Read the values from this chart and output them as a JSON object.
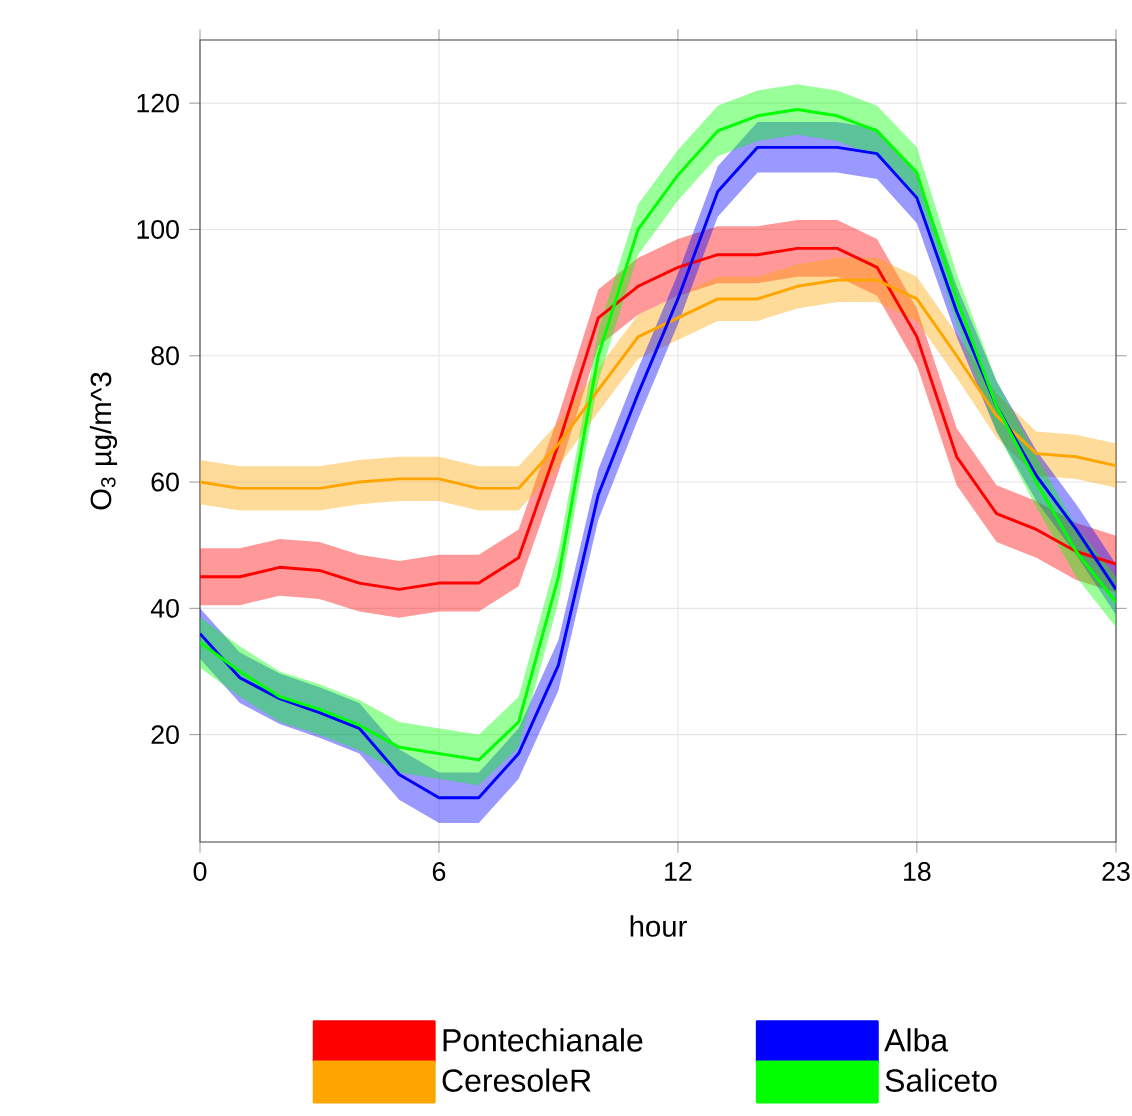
{
  "chart_data": {
    "type": "line",
    "xlabel": "hour",
    "ylabel": "O$_{3}$ µg/m^3",
    "x": [
      0,
      1,
      2,
      3,
      4,
      5,
      6,
      7,
      8,
      9,
      10,
      11,
      12,
      13,
      14,
      15,
      16,
      17,
      18,
      19,
      20,
      21,
      22,
      23
    ],
    "xlim": [
      0,
      23
    ],
    "xticks": [
      0,
      6,
      12,
      18,
      23
    ],
    "ylim": [
      3,
      130
    ],
    "yticks": [
      20,
      40,
      60,
      80,
      100,
      120
    ],
    "grid": true,
    "legend": "bottom",
    "marker": "none",
    "line_style": "solid",
    "series": [
      {
        "name": "Pontechianale",
        "color": "#ff0000",
        "values": [
          45,
          45,
          46.5,
          46,
          44,
          43,
          44,
          44,
          48,
          66,
          86,
          91,
          94,
          96,
          96,
          97,
          97,
          94,
          83,
          64,
          55,
          52.5,
          49,
          47
        ],
        "lower": [
          40.5,
          40.5,
          42,
          41.5,
          39.5,
          38.5,
          39.5,
          39.5,
          43.5,
          61.5,
          81.5,
          86.5,
          89.5,
          91.5,
          91.5,
          92.5,
          92.5,
          89.5,
          78.5,
          59.5,
          50.5,
          48,
          44.5,
          42.5
        ],
        "upper": [
          49.5,
          49.5,
          51,
          50.5,
          48.5,
          47.5,
          48.5,
          48.5,
          52.5,
          70.5,
          90.5,
          95.5,
          98.5,
          100.5,
          100.5,
          101.5,
          101.5,
          98.5,
          87.5,
          68.5,
          59.5,
          57,
          53.5,
          51.5
        ]
      },
      {
        "name": "CeresoleR",
        "color": "#ffa500",
        "values": [
          60,
          59,
          59,
          59,
          60,
          60.5,
          60.5,
          59,
          59,
          66,
          74.6,
          83,
          86,
          89,
          89,
          91,
          92,
          92,
          89,
          80,
          70.5,
          64.5,
          64,
          62.6
        ],
        "lower": [
          56.5,
          55.5,
          55.5,
          55.5,
          56.5,
          57,
          57,
          55.5,
          55.5,
          62.5,
          71.1,
          79.5,
          82.5,
          85.5,
          85.5,
          87.5,
          88.5,
          88.5,
          85.5,
          76.5,
          67,
          61,
          60.5,
          59.1
        ],
        "upper": [
          63.5,
          62.5,
          62.5,
          62.5,
          63.5,
          64,
          64,
          62.5,
          62.5,
          69.5,
          78.1,
          86.5,
          89.5,
          92.5,
          92.5,
          94.5,
          95.5,
          95.5,
          92.5,
          83.5,
          74,
          68,
          67.5,
          66.1
        ]
      },
      {
        "name": "Alba",
        "color": "#0000ff",
        "values": [
          36,
          29,
          25.7,
          23.5,
          21,
          13.7,
          10,
          10,
          17,
          31,
          58,
          74,
          89,
          106,
          113,
          113,
          113,
          112,
          105,
          87,
          72,
          61,
          52.5,
          43
        ],
        "lower": [
          32,
          25,
          21.7,
          19.5,
          17,
          9.7,
          6,
          6,
          13,
          27,
          54,
          70,
          85,
          102,
          109,
          109,
          109,
          108,
          101,
          83,
          68,
          57,
          48.5,
          39
        ],
        "upper": [
          40,
          33,
          29.7,
          27.5,
          25,
          17.7,
          14,
          14,
          21,
          35,
          62,
          78,
          93,
          110,
          117,
          117,
          117,
          116,
          109,
          91,
          76,
          65,
          56.5,
          47
        ]
      },
      {
        "name": "Saliceto",
        "color": "#00ff00",
        "values": [
          34.6,
          30,
          26,
          24,
          21.5,
          18,
          17,
          16,
          22,
          45,
          80,
          100,
          108.6,
          115.6,
          118,
          119,
          118,
          115.6,
          109,
          89,
          72,
          60,
          49,
          41
        ],
        "lower": [
          30.6,
          26,
          22,
          20,
          17.5,
          14,
          13,
          12,
          18,
          41,
          76,
          96,
          104.6,
          111.6,
          114,
          115,
          114,
          111.6,
          105,
          85,
          68,
          56,
          45,
          37
        ],
        "upper": [
          38.6,
          34,
          30,
          28,
          25.5,
          22,
          21,
          20,
          26,
          49,
          84,
          104,
          112.6,
          119.6,
          122,
          123,
          122,
          119.6,
          113,
          93,
          76,
          64,
          53,
          45
        ]
      }
    ]
  }
}
